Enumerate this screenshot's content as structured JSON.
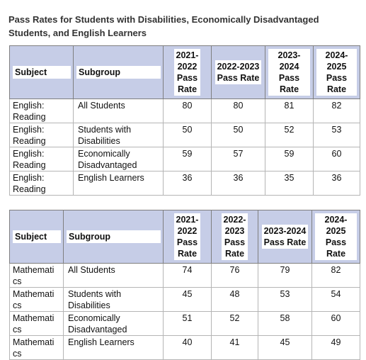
{
  "title": "Pass Rates for Students with Disabilities, Economically Disadvantaged Students, and English Learners",
  "table1": {
    "headers": {
      "subject": "Subject",
      "subgroup": "Subgroup",
      "y1": "2021-\n2022\nPass\nRate",
      "y2": "2022-2023\nPass Rate",
      "y3": "2023-2024\nPass Rate",
      "y4": "2024-2025\nPass Rate"
    },
    "rows": [
      {
        "subject": "English:\nReading",
        "subgroup": "All Students",
        "y1": "80",
        "y2": "80",
        "y3": "81",
        "y4": "82"
      },
      {
        "subject": "English:\nReading",
        "subgroup": "Students with\nDisabilities",
        "y1": "50",
        "y2": "50",
        "y3": "52",
        "y4": "53"
      },
      {
        "subject": "English:\nReading",
        "subgroup": "Economically\nDisadvantaged",
        "y1": "59",
        "y2": "57",
        "y3": "59",
        "y4": "60"
      },
      {
        "subject": "English:\nReading",
        "subgroup": "English Learners",
        "y1": "36",
        "y2": "36",
        "y3": "35",
        "y4": "36"
      }
    ]
  },
  "table2": {
    "headers": {
      "subject": "Subject",
      "subgroup": "Subgroup",
      "y1": "2021-\n2022\nPass\nRate",
      "y2": "2022-\n2023\nPass\nRate",
      "y3": "2023-2024\nPass Rate",
      "y4": "2024-2025\nPass Rate"
    },
    "rows": [
      {
        "subject": "Mathemati\ncs",
        "subgroup": "All Students",
        "y1": "74",
        "y2": "76",
        "y3": "79",
        "y4": "82"
      },
      {
        "subject": "Mathemati\ncs",
        "subgroup": "Students with\nDisabilities",
        "y1": "45",
        "y2": "48",
        "y3": "53",
        "y4": "54"
      },
      {
        "subject": "Mathemati\ncs",
        "subgroup": "Economically\nDisadvantaged",
        "y1": "51",
        "y2": "52",
        "y3": "58",
        "y4": "60"
      },
      {
        "subject": "Mathemati\ncs",
        "subgroup": "English Learners",
        "y1": "40",
        "y2": "41",
        "y3": "45",
        "y4": "49"
      }
    ]
  }
}
